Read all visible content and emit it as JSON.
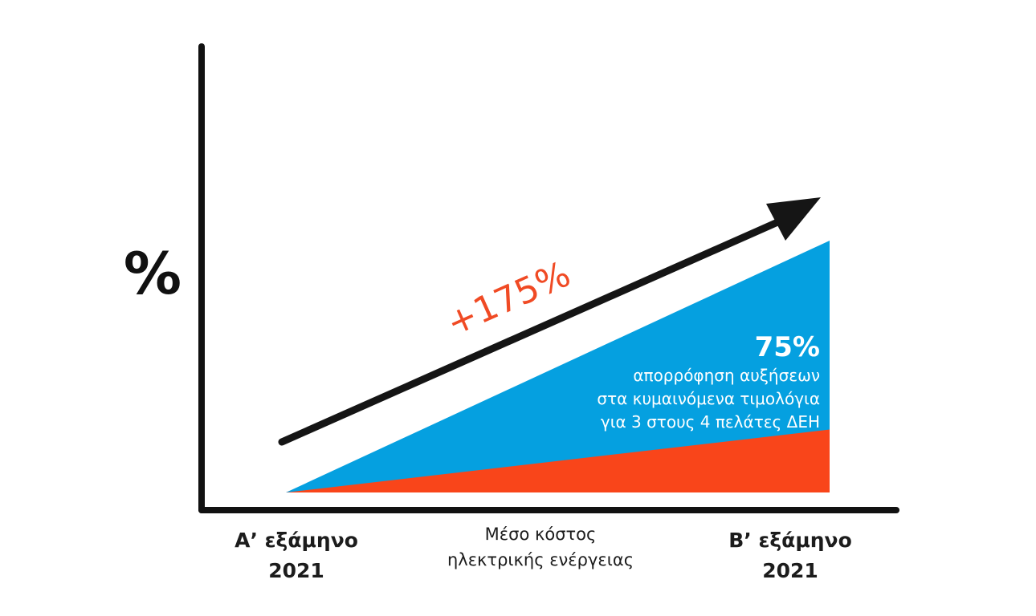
{
  "chart_data": {
    "type": "area",
    "ylabel": "%",
    "categories": [
      "Α' εξάμηνο 2021",
      "Β' εξάμηνο 2021"
    ],
    "x_labels": {
      "start": [
        "Α’ εξάμηνο",
        "2021"
      ],
      "middle": [
        "Μέσο κόστος",
        "ηλεκτρικής ενέργειας"
      ],
      "end": [
        "Β’ εξάμηνο",
        "2021"
      ]
    },
    "series": [
      {
        "values": [
          0,
          100
        ],
        "color": "#05a0e0"
      },
      {
        "values": [
          0,
          25
        ],
        "color": "#f9451a"
      }
    ],
    "ylim": [
      0,
      140
    ],
    "growth_annotation": "+175%",
    "share_annotation": {
      "value": "75%",
      "lines": [
        "απορρόφηση αυξήσεων",
        "στα κυμαινόμενα τιμολόγια",
        "για 3 στους 4 πελάτες ΔΕΗ"
      ]
    },
    "colors": {
      "axis": "#111111",
      "arrow": "#151515",
      "growth_text": "#f04a24"
    }
  }
}
